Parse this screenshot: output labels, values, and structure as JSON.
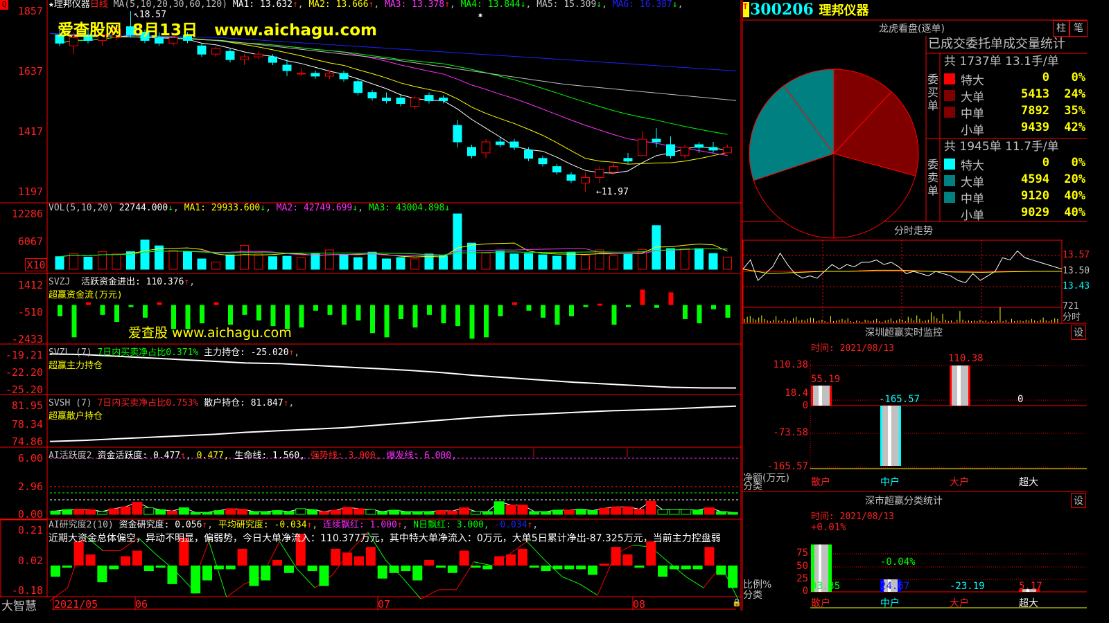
{
  "header": {
    "stock_name": "★理邦仪器",
    "period": "日线",
    "ma_params": "MA(5,10,20,30,60,120)",
    "ma": [
      {
        "label": "MA1: 13.632",
        "arrow": "↑",
        "color": "#ffffff"
      },
      {
        "label": "MA2: 13.666",
        "arrow": "↑",
        "color": "#ffff00"
      },
      {
        "label": "MA3: 13.378",
        "arrow": "↑",
        "color": "#ff30ff"
      },
      {
        "label": "MA4: 13.844",
        "arrow": "↓",
        "color": "#00ff00"
      },
      {
        "label": "MA5: 15.309",
        "arrow": "↓",
        "color": "#c0c0c0"
      },
      {
        "label": "MA6: 16.387",
        "arrow": "↓",
        "color": "#2020ff"
      }
    ],
    "high_mark": "18.57",
    "low_mark": "←11.97"
  },
  "watermark": {
    "site": "爱查股网",
    "date": "8月13日",
    "url": "www.aichagu.com",
    "small": "爱查股 www.aichagu.com"
  },
  "axes": {
    "price": [
      "1857",
      "1637",
      "1417",
      "1197"
    ],
    "vol": [
      "12286",
      "6067"
    ],
    "vol_unit": "X10",
    "svzj": [
      "1412",
      "-510",
      "-2433"
    ],
    "svzl": [
      "-19.21",
      "-22.20",
      "-25.20"
    ],
    "svsh": [
      "81.95",
      "78.34",
      "74.86"
    ],
    "ai1": [
      "6.00",
      "2.96",
      "0.00"
    ],
    "ai2": [
      "0.21",
      "0.02",
      "-0.18"
    ],
    "dates": [
      "2021/05",
      "06",
      "07",
      "08"
    ],
    "brand": "大智慧"
  },
  "panels": {
    "vol": {
      "name": "VOL(5,10,20)",
      "v": "22744.000",
      "ma1": "MA1: 29933.600",
      "ma2": "MA2: 42749.699",
      "ma3": "MA3: 43004.898",
      "down": "↓"
    },
    "svzj": {
      "name": "SVZJ",
      "text": "活跃资金进出: 110.376",
      "up": "↑",
      "sub": "超赢资金流(万元)"
    },
    "svzl": {
      "name": "SVZL (7)",
      "ratio": "7日内买卖净占比0.371%",
      "text": "主力持仓: -25.020",
      "up": "↑",
      "sub": "超赢主力持仓"
    },
    "svsh": {
      "name": "SVSH (7)",
      "ratio": "7日内买卖净占比0.753%",
      "text": "散户持仓: 81.847",
      "up": "↑",
      "sub": "超赢散户持仓"
    },
    "ai1": {
      "name": "AI活跃度2",
      "a": "资金活跃度: 0.477",
      "b": "0.477,",
      "c": "生命线: 1.560,",
      "d": "强势线: 3.000,",
      "e": "爆发线: 6.000,"
    },
    "ai2": {
      "name": "AI研究度2(10)",
      "a": "资金研究度: 0.056",
      "b": "平均研究度: -0.034",
      "c": "连续飘红: 1.000",
      "d": "N日飘红: 3.000,",
      "e": "-0.034",
      "comment": "近期大资金总体偏空，异动不明显，偏弱势，今日大单净流入：110.377万元，其中特大单净流入：0万元，大单5日累计净出-87.325万元，当前主力控盘弱"
    }
  },
  "right": {
    "code": "300206",
    "name": "理邦仪器",
    "t_badge": "T",
    "pie_title": "龙虎看盘(逐单)",
    "btn_bar": "柱",
    "btn_pen": "笔",
    "stat_title": "已成交委托单成交量统计",
    "buy": {
      "label": "委买单",
      "summary": "共 1737单 13.1手/单",
      "rows": [
        {
          "name": "特大",
          "value": "0",
          "pct": "0%",
          "color": "#ff0000"
        },
        {
          "name": "大单",
          "value": "5413",
          "pct": "24%",
          "color": "#800000"
        },
        {
          "name": "中单",
          "value": "7892",
          "pct": "35%",
          "color": "#800000"
        },
        {
          "name": "小单",
          "value": "9439",
          "pct": "42%",
          "color": "#000000"
        }
      ]
    },
    "sell": {
      "label": "委卖单",
      "summary": "共 1945单 11.7手/单",
      "rows": [
        {
          "name": "特大",
          "value": "0",
          "pct": "0%",
          "color": "#00ffff"
        },
        {
          "name": "大单",
          "value": "4594",
          "pct": "20%",
          "color": "#008080"
        },
        {
          "name": "中单",
          "value": "9120",
          "pct": "40%",
          "color": "#008080"
        },
        {
          "name": "小单",
          "value": "9029",
          "pct": "40%",
          "color": "#000000"
        }
      ]
    },
    "intraday_title": "分时走势",
    "intraday_axis": [
      "13.57",
      "13.50",
      "13.43"
    ],
    "intraday_vol": "721",
    "intraday_vol_label": "分时",
    "sz_title": "深圳超赢实时监控",
    "sz_time": "时间: 2021/08/13",
    "sz_axis": [
      "110.38",
      "18.4",
      "0",
      "-73.58",
      "-165.57"
    ],
    "sz_ylabel": "净额(万元)",
    "sz_xlabel": "分类",
    "sz_set": "设",
    "sm_title": "深市超赢分类统计",
    "sm_time": "时间: 2021/08/13",
    "sm_axis": [
      "75",
      "50",
      "25",
      "0"
    ],
    "sm_ylabel": "比例%",
    "sm_xlabel": "分类",
    "sm_set": "设"
  },
  "chart_data": [
    {
      "type": "candlestick",
      "name": "理邦仪器 日线",
      "ohlc": [
        [
          17.7,
          17.9,
          17.3,
          17.4
        ],
        [
          17.3,
          17.8,
          17.0,
          17.6
        ],
        [
          17.7,
          17.9,
          17.4,
          17.5
        ],
        [
          17.5,
          17.8,
          17.3,
          17.7
        ],
        [
          17.6,
          18.1,
          17.5,
          17.9
        ],
        [
          18.0,
          18.57,
          17.6,
          17.7
        ],
        [
          17.8,
          17.9,
          17.4,
          17.5
        ],
        [
          17.6,
          17.8,
          17.3,
          17.4
        ],
        [
          17.4,
          17.7,
          17.3,
          17.6
        ],
        [
          17.7,
          17.8,
          17.4,
          17.5
        ],
        [
          17.3,
          17.4,
          16.9,
          17.0
        ],
        [
          17.0,
          17.3,
          16.9,
          17.2
        ],
        [
          17.1,
          17.2,
          16.7,
          16.8
        ],
        [
          16.8,
          17.0,
          16.6,
          16.9
        ],
        [
          16.9,
          17.1,
          16.8,
          17.0
        ],
        [
          16.9,
          17.0,
          16.6,
          16.7
        ],
        [
          16.6,
          16.8,
          16.2,
          16.4
        ],
        [
          16.3,
          16.5,
          16.2,
          16.3
        ],
        [
          16.3,
          16.4,
          16.1,
          16.2
        ],
        [
          16.2,
          16.4,
          16.1,
          16.3
        ],
        [
          16.3,
          16.4,
          16.0,
          16.1
        ],
        [
          16.0,
          16.1,
          15.5,
          15.6
        ],
        [
          15.6,
          15.7,
          15.3,
          15.4
        ],
        [
          15.4,
          15.6,
          15.2,
          15.3
        ],
        [
          15.4,
          15.5,
          15.1,
          15.2
        ],
        [
          15.1,
          15.5,
          15.0,
          15.4
        ],
        [
          15.5,
          15.6,
          15.2,
          15.3
        ],
        [
          15.4,
          15.5,
          15.2,
          15.3
        ],
        [
          14.4,
          14.6,
          13.6,
          13.8
        ],
        [
          13.6,
          13.7,
          13.2,
          13.3
        ],
        [
          13.4,
          13.9,
          13.2,
          13.8
        ],
        [
          13.8,
          14.0,
          13.6,
          13.7
        ],
        [
          13.8,
          13.9,
          13.5,
          13.6
        ],
        [
          13.5,
          13.6,
          13.1,
          13.2
        ],
        [
          13.2,
          13.3,
          12.9,
          13.0
        ],
        [
          12.9,
          13.0,
          12.6,
          12.7
        ],
        [
          12.6,
          12.7,
          12.3,
          12.4
        ],
        [
          12.3,
          12.7,
          11.97,
          12.5
        ],
        [
          12.5,
          12.9,
          12.3,
          12.8
        ],
        [
          12.7,
          13.1,
          12.6,
          12.9
        ],
        [
          13.2,
          13.4,
          13.0,
          13.1
        ],
        [
          13.3,
          14.2,
          13.3,
          13.9
        ],
        [
          13.9,
          14.3,
          13.6,
          13.8
        ],
        [
          13.7,
          14.0,
          13.2,
          13.3
        ],
        [
          13.3,
          13.7,
          13.2,
          13.6
        ],
        [
          13.7,
          13.8,
          13.4,
          13.6
        ],
        [
          13.6,
          13.8,
          13.4,
          13.5
        ],
        [
          13.4,
          13.7,
          13.4,
          13.6
        ]
      ],
      "ma5_60": [
        17.75,
        17.5,
        16.8,
        15.9,
        15.309
      ],
      "ma6_120": [
        17.75,
        17.6,
        17.2,
        16.8,
        16.387
      ],
      "ylim": [
        11.6,
        18.7
      ]
    },
    {
      "type": "bar",
      "name": "VOL",
      "unit": "X10",
      "values": [
        2800,
        3500,
        2700,
        3900,
        3400,
        3900,
        6500,
        5200,
        4200,
        3900,
        2300,
        1600,
        3200,
        5300,
        3400,
        2800,
        2900,
        2600,
        3500,
        4300,
        3200,
        2600,
        3800,
        2300,
        2600,
        2300,
        3400,
        3000,
        12286,
        5800,
        3600,
        4000,
        3400,
        3500,
        3200,
        2900,
        3800,
        3100,
        4300,
        3000,
        3300,
        4400,
        9700,
        4600,
        4700,
        4600,
        3500,
        2700
      ]
    },
    {
      "type": "bar",
      "name": "SVZJ",
      "values": [
        -800,
        -2300,
        200,
        -700,
        -1200,
        -150,
        -900,
        200,
        -1700,
        -1700,
        -1300,
        200,
        -1400,
        -700,
        -1100,
        -1500,
        -1700,
        -1600,
        -400,
        -700,
        -1400,
        -1100,
        -2000,
        -2300,
        -1000,
        -1600,
        -700,
        -1300,
        -1500,
        -2400,
        -2300,
        -800,
        200,
        -400,
        -900,
        -1400,
        -800,
        -100,
        100,
        -1400,
        -100,
        1100,
        -200,
        900,
        -1000,
        -1300,
        -300,
        -900
      ]
    },
    {
      "type": "line",
      "name": "SVZL",
      "values": [
        -19.0,
        -19.1,
        -19.4,
        -19.7,
        -20.0,
        -20.3,
        -20.6,
        -20.7,
        -21.0,
        -21.3,
        -21.6,
        -21.9,
        -22.3,
        -22.8,
        -23.2,
        -23.6,
        -24.0,
        -24.3,
        -24.6,
        -24.9,
        -25.0,
        -25.02
      ]
    },
    {
      "type": "line",
      "name": "SVSH",
      "values": [
        74.9,
        75.1,
        75.4,
        75.7,
        76.0,
        76.3,
        76.7,
        77.0,
        77.3,
        77.6,
        78.1,
        78.6,
        79.1,
        79.6,
        80.0,
        80.3,
        80.6,
        80.9,
        81.1,
        81.3,
        81.6,
        81.847
      ]
    },
    {
      "type": "bar",
      "name": "AI活跃度2",
      "values": [
        0.35,
        0.5,
        0.55,
        0.5,
        0.3,
        0.6,
        0.8,
        1.3,
        0.7,
        0.5,
        0.35,
        0.7,
        0.2,
        0.2,
        0.4,
        0.6,
        0.55,
        0.3,
        0.3,
        0.4,
        0.3,
        0.6,
        0.5,
        0.3,
        0.45,
        0.75,
        0.6,
        0.5,
        0.3,
        0.45,
        0.3,
        0.3,
        0.3,
        0.4,
        0.35,
        0.7,
        0.3,
        0.3,
        1.35,
        1.0,
        1.0,
        0.3,
        0.3,
        0.45,
        0.45,
        0.55,
        0.4,
        0.65,
        0.8,
        0.8,
        0.55,
        1.4,
        0.5,
        0.5,
        0.5,
        0.45,
        0.7,
        0.3,
        0.2
      ],
      "kinds": "ggrrorrrogrggggrrggggogrrrrogggggrrroggrrgggrggrrrrrooogrgg"
    },
    {
      "type": "bar+line",
      "name": "AI研究度2",
      "bars": [
        -0.06,
        -0.01,
        0.13,
        0.06,
        -0.09,
        -0.02,
        0.05,
        0.08,
        -0.03,
        -0.01,
        -0.1,
        0.15,
        -0.15,
        -0.08,
        -0.02,
        -0.02,
        0.09,
        -0.11,
        -0.08,
        0.03,
        -0.04,
        0.17,
        -0.03,
        -0.11,
        0.09,
        0.07,
        0.05,
        0.1,
        -0.07,
        -0.04,
        -0.03,
        -0.08,
        0.03,
        -0.01,
        -0.04,
        0.08,
        -0.01,
        -0.02,
        0.05,
        0.06,
        0.09,
        -0.01,
        -0.03,
        -0.02,
        -0.02,
        -0.02,
        -0.05,
        0.01,
        0.1,
        0.06,
        -0.01,
        0.13,
        -0.06,
        -0.02,
        -0.02,
        -0.02,
        0.1,
        -0.05,
        -0.12
      ],
      "line": [
        -0.17,
        -0.1,
        0.18,
        0.1,
        0.1,
        0.17,
        0.08,
        0.0,
        -0.1,
        0.15,
        -0.15,
        -0.08,
        -0.04,
        0.15,
        0.0,
        -0.1,
        -0.03,
        0.1,
        0.2,
        0.05,
        -0.05,
        -0.16,
        -0.11,
        -0.11,
        0.04,
        0.02,
        0.08,
        0.15,
        0.05,
        -0.04,
        -0.08,
        -0.14,
        0.08,
        0.13,
        0.12,
        0.04,
        -0.04,
        -0.1,
        0.02,
        -0.17
      ]
    },
    {
      "type": "pie",
      "name": "龙虎看盘",
      "slices": [
        5413,
        7892,
        9439,
        9029,
        9120,
        4594
      ],
      "colors": [
        "#800000",
        "#800000",
        "#000000",
        "#000000",
        "#008080",
        "#008080"
      ]
    },
    {
      "type": "line",
      "name": "分时走势",
      "price": [
        13.51,
        13.55,
        13.46,
        13.49,
        13.52,
        13.58,
        13.53,
        13.49,
        13.47,
        13.48,
        13.47,
        13.5,
        13.53,
        13.51,
        13.53,
        13.52,
        13.54,
        13.54,
        13.55,
        13.53,
        13.54,
        13.52,
        13.49,
        13.5,
        13.49,
        13.48,
        13.5,
        13.49,
        13.48,
        13.46,
        13.45,
        13.49,
        13.46,
        13.48,
        13.5,
        13.56,
        13.55,
        13.59,
        13.56,
        13.55,
        13.54,
        13.53,
        13.52,
        13.51
      ],
      "avg": [
        13.51,
        13.49,
        13.495,
        13.5,
        13.5,
        13.505,
        13.505,
        13.5,
        13.497,
        13.496,
        13.498,
        13.5,
        13.5
      ],
      "volume": [
        5,
        8,
        9,
        6,
        4,
        7,
        10,
        5,
        3,
        2,
        4,
        9,
        3,
        2,
        5,
        3,
        2,
        6,
        8,
        3,
        4,
        3,
        5,
        7,
        6,
        2,
        3,
        4,
        2,
        1,
        9,
        2,
        3,
        4,
        5,
        3,
        6,
        2,
        1,
        3,
        2,
        1,
        4,
        3,
        2,
        3,
        5,
        2,
        1,
        3,
        4,
        6,
        2,
        3,
        5,
        4,
        2,
        8,
        6,
        3,
        10,
        5,
        2,
        3,
        4,
        14,
        9,
        6,
        2,
        12,
        4,
        2,
        3,
        1,
        4,
        16,
        4,
        2,
        3,
        2,
        3,
        2,
        4,
        2,
        3,
        1,
        2,
        2,
        3,
        21,
        2,
        4,
        1,
        5,
        2,
        3,
        3,
        2,
        4,
        3,
        5,
        3,
        2,
        4,
        7,
        3,
        2,
        4,
        6,
        5
      ]
    },
    {
      "type": "bar",
      "name": "深圳超赢实时监控",
      "categories": [
        "散户",
        "中户",
        "大户",
        "超大"
      ],
      "values": [
        55.19,
        -165.57,
        110.38,
        0
      ],
      "value_labels": [
        "55.19",
        "-165.57",
        "110.38",
        "0"
      ],
      "ylim": [
        -165.57,
        110.38
      ]
    },
    {
      "type": "bar",
      "name": "深市超赢分类统计",
      "categories": [
        "散户",
        "中户",
        "大户",
        "超大"
      ],
      "values": [
        93.35,
        24.67,
        -23.19,
        5.17
      ],
      "value_labels": [
        "93.35",
        "24.67",
        "-23.19",
        "5.17"
      ],
      "changes": [
        "+0.01%",
        "-0.04%",
        "",
        ""
      ],
      "ylim": [
        0,
        100
      ]
    }
  ]
}
